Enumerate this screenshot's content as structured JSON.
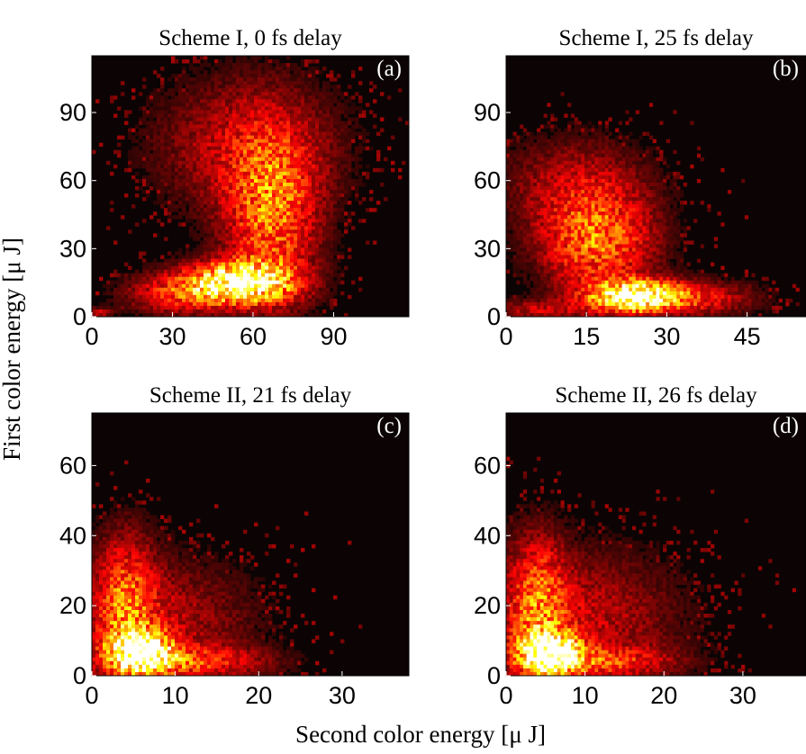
{
  "figure": {
    "ylabel": "First color energy [μ J]",
    "xlabel": "Second color energy [μ J]"
  },
  "chart_data": [
    {
      "type": "heatmap",
      "panel": "(a)",
      "title": "Scheme I, 0 fs delay",
      "xlim": [
        0,
        118
      ],
      "ylim": [
        0,
        115
      ],
      "xticks": [
        0,
        30,
        60,
        90
      ],
      "yticks": [
        0,
        30,
        60,
        90
      ],
      "colormap": "hot",
      "density_blobs": [
        {
          "x": 55,
          "y": 15,
          "sx": 13,
          "sy": 6,
          "w": 1.0
        },
        {
          "x": 67,
          "y": 45,
          "sx": 11,
          "sy": 24,
          "w": 0.45
        },
        {
          "x": 58,
          "y": 75,
          "sx": 22,
          "sy": 20,
          "w": 0.22
        },
        {
          "x": 32,
          "y": 10,
          "sx": 13,
          "sy": 6,
          "w": 0.3
        },
        {
          "x": 3,
          "y": 2,
          "sx": 3,
          "sy": 1.5,
          "w": 0.22
        }
      ]
    },
    {
      "type": "heatmap",
      "panel": "(b)",
      "title": "Scheme I, 25 fs delay",
      "xlim": [
        0,
        56
      ],
      "ylim": [
        0,
        115
      ],
      "xticks": [
        0,
        15,
        30,
        45
      ],
      "yticks": [
        0,
        30,
        60,
        90
      ],
      "colormap": "hot",
      "density_blobs": [
        {
          "x": 24,
          "y": 9,
          "sx": 5.5,
          "sy": 4.5,
          "w": 1.0
        },
        {
          "x": 17,
          "y": 33,
          "sx": 7,
          "sy": 15,
          "w": 0.45
        },
        {
          "x": 13,
          "y": 58,
          "sx": 9,
          "sy": 14,
          "w": 0.18
        },
        {
          "x": 34,
          "y": 8,
          "sx": 8,
          "sy": 5,
          "w": 0.3
        },
        {
          "x": 6,
          "y": 3,
          "sx": 6,
          "sy": 3,
          "w": 0.2
        }
      ]
    },
    {
      "type": "heatmap",
      "panel": "(c)",
      "title": "Scheme II, 21 fs delay",
      "xlim": [
        0,
        38
      ],
      "ylim": [
        0,
        75
      ],
      "xticks": [
        0,
        10,
        20,
        30
      ],
      "yticks": [
        0,
        20,
        40,
        60
      ],
      "colormap": "hot",
      "density_blobs": [
        {
          "x": 6,
          "y": 6.5,
          "sx": 2.6,
          "sy": 4,
          "w": 1.0
        },
        {
          "x": 4,
          "y": 20,
          "sx": 2.5,
          "sy": 13,
          "w": 0.4
        },
        {
          "x": 12,
          "y": 4,
          "sx": 6,
          "sy": 3,
          "w": 0.3
        },
        {
          "x": 9,
          "y": 15,
          "sx": 7,
          "sy": 12,
          "w": 0.18
        }
      ]
    },
    {
      "type": "heatmap",
      "panel": "(d)",
      "title": "Scheme II, 26 fs delay",
      "xlim": [
        0,
        38
      ],
      "ylim": [
        0,
        75
      ],
      "xticks": [
        0,
        10,
        20,
        30
      ],
      "yticks": [
        0,
        20,
        40,
        60
      ],
      "colormap": "hot",
      "density_blobs": [
        {
          "x": 5.5,
          "y": 6.5,
          "sx": 2.6,
          "sy": 4,
          "w": 1.0
        },
        {
          "x": 4,
          "y": 20,
          "sx": 2.5,
          "sy": 13,
          "w": 0.4
        },
        {
          "x": 12,
          "y": 4,
          "sx": 6,
          "sy": 3,
          "w": 0.3
        },
        {
          "x": 10,
          "y": 16,
          "sx": 8,
          "sy": 13,
          "w": 0.2
        }
      ]
    }
  ]
}
